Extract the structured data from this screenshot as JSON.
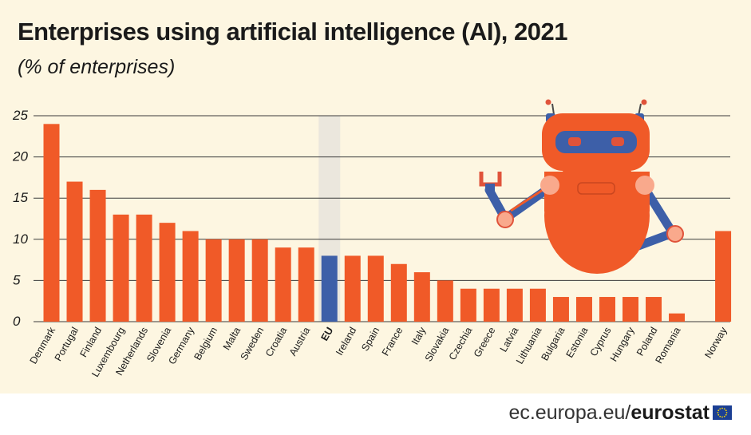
{
  "header": {
    "title": "Enterprises using artificial intelligence (AI), 2021",
    "subtitle": "(% of enterprises)"
  },
  "footer": {
    "site": "ec.europa.eu/",
    "brand": "eurostat"
  },
  "colors": {
    "bar": "#f05a28",
    "highlight_bar": "#3d5fa8",
    "highlight_band": "#ebe7dd",
    "background": "#fdf6e1",
    "grid": "#3a3a3a"
  },
  "illustration": "robot",
  "chart_data": {
    "type": "bar",
    "title": "Enterprises using artificial intelligence (AI), 2021",
    "subtitle": "(% of enterprises)",
    "xlabel": "",
    "ylabel": "",
    "ylim": [
      0,
      25
    ],
    "yticks": [
      0,
      5,
      10,
      15,
      20,
      25
    ],
    "grid": true,
    "highlight": "EU",
    "categories": [
      "Denmark",
      "Portugal",
      "Finland",
      "Luxembourg",
      "Netherlands",
      "Slovenia",
      "Germany",
      "Belgium",
      "Malta",
      "Sweden",
      "Croatia",
      "Austria",
      "EU",
      "Ireland",
      "Spain",
      "France",
      "Italy",
      "Slovakia",
      "Czechia",
      "Greece",
      "Latvia",
      "Lithuania",
      "Bulgaria",
      "Estonia",
      "Cyprus",
      "Hungary",
      "Poland",
      "Romania",
      "Norway"
    ],
    "values": [
      24,
      17,
      16,
      13,
      13,
      12,
      11,
      10,
      10,
      10,
      9,
      9,
      8,
      8,
      8,
      7,
      6,
      5,
      4,
      4,
      4,
      4,
      3,
      3,
      3,
      3,
      3,
      1,
      11
    ]
  }
}
